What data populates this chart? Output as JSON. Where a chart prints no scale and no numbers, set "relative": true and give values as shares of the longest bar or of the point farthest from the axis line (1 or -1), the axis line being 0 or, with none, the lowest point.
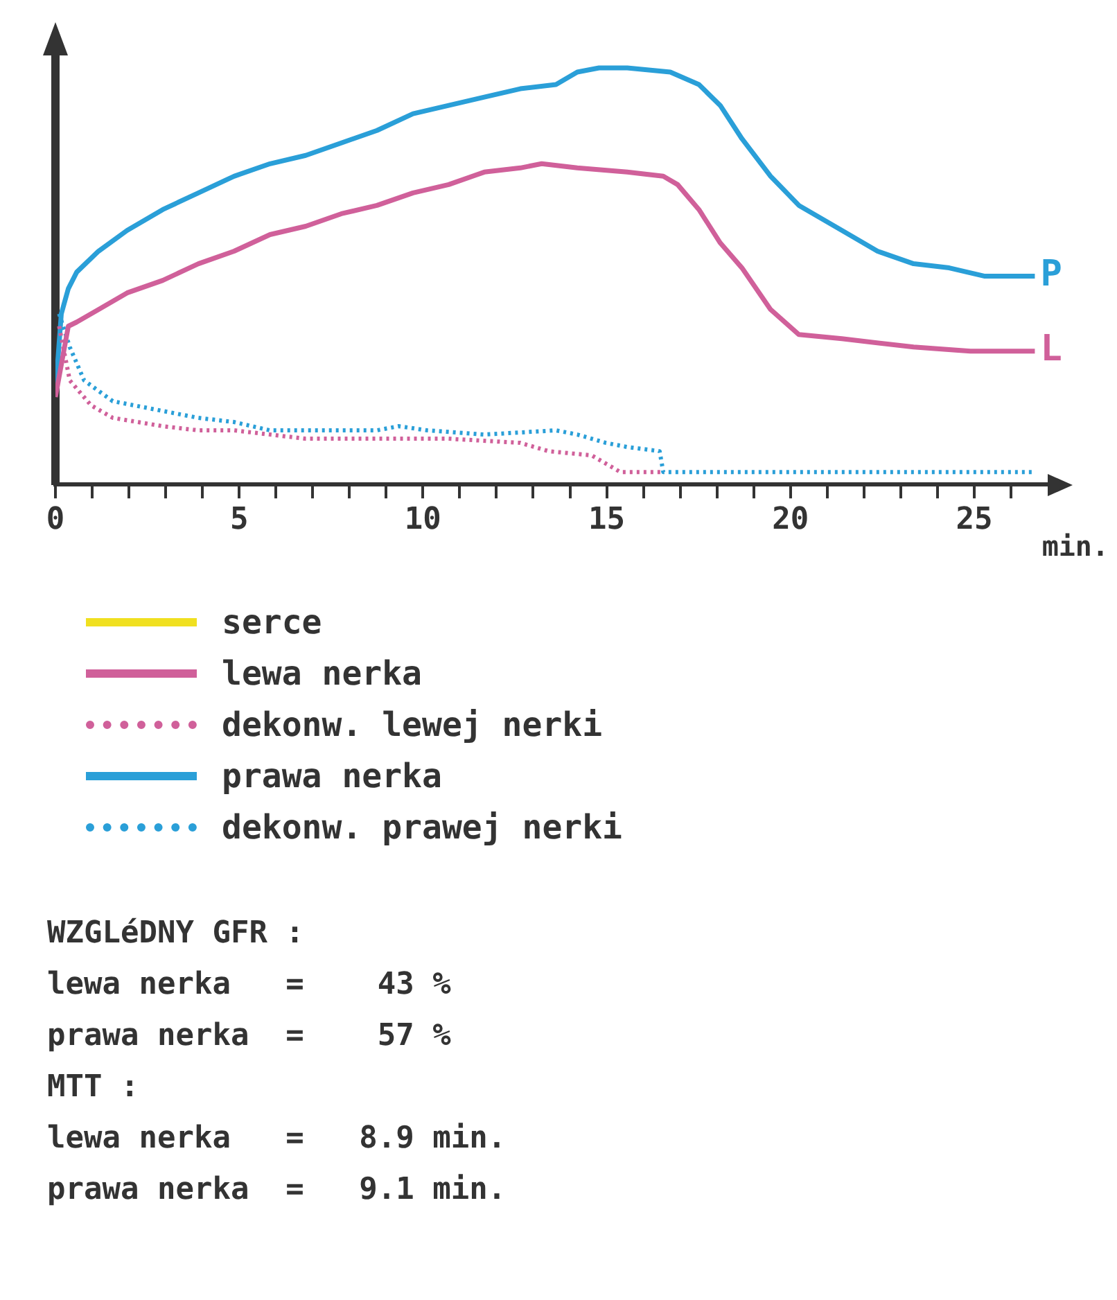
{
  "chart_data": {
    "type": "line",
    "relative": true,
    "xlabel": "min.",
    "xlim": [
      0,
      27
    ],
    "xticks": [
      0,
      {
        "value": 1,
        "label": null
      },
      {
        "value": 2,
        "label": null
      },
      {
        "value": 3,
        "label": null
      },
      {
        "value": 4,
        "label": null
      },
      5,
      {
        "value": 6,
        "label": null
      },
      {
        "value": 7,
        "label": null
      },
      {
        "value": 8,
        "label": null
      },
      {
        "value": 9,
        "label": null
      },
      10,
      {
        "value": 11,
        "label": null
      },
      {
        "value": 12,
        "label": null
      },
      {
        "value": 13,
        "label": null
      },
      {
        "value": 14,
        "label": null
      },
      15,
      {
        "value": 16,
        "label": null
      },
      {
        "value": 17,
        "label": null
      },
      {
        "value": 18,
        "label": null
      },
      {
        "value": 19,
        "label": null
      },
      20,
      {
        "value": 21,
        "label": null
      },
      {
        "value": 22,
        "label": null
      },
      {
        "value": 23,
        "label": null
      },
      {
        "value": 24,
        "label": null
      },
      25,
      {
        "value": 26,
        "label": null
      }
    ],
    "legend": "bottom",
    "grid": false,
    "marker": "none",
    "series": [
      {
        "name": "serce",
        "color": "#f0e020"
      },
      {
        "name": "lewa nerka",
        "color": "#d0609a",
        "x": [
          0,
          0.35,
          0.58,
          1.17,
          1.95,
          2.92,
          3.89,
          4.86,
          5.84,
          6.81,
          7.78,
          8.75,
          9.73,
          10.7,
          11.67,
          12.65,
          13.23,
          14.2,
          15.56,
          16.54,
          16.93,
          17.51,
          18.09,
          18.68,
          19.46,
          20.23,
          21.4,
          23.35,
          24.9,
          26.65
        ],
        "values": [
          0.21,
          0.38,
          0.39,
          0.42,
          0.46,
          0.49,
          0.53,
          0.56,
          0.6,
          0.62,
          0.65,
          0.67,
          0.7,
          0.72,
          0.75,
          0.76,
          0.77,
          0.76,
          0.75,
          0.74,
          0.72,
          0.66,
          0.58,
          0.52,
          0.42,
          0.36,
          0.35,
          0.33,
          0.32,
          0.32
        ]
      },
      {
        "name": "dekonw. lewej nerki",
        "color": "#d0609a",
        "line_style": "dotted",
        "x": [
          0.1,
          0.39,
          0.97,
          1.56,
          2.92,
          3.89,
          4.86,
          6.81,
          8.75,
          10.7,
          12.65,
          13.42,
          14.59,
          15.37,
          16.54
        ],
        "values": [
          0.38,
          0.25,
          0.19,
          0.16,
          0.14,
          0.13,
          0.13,
          0.11,
          0.11,
          0.11,
          0.1,
          0.08,
          0.07,
          0.03,
          0.03
        ]
      },
      {
        "name": "prawa nerka",
        "color": "#2a9fd8",
        "x": [
          0,
          0.16,
          0.35,
          0.58,
          1.17,
          1.95,
          2.92,
          3.89,
          4.86,
          5.84,
          6.81,
          7.78,
          8.75,
          9.73,
          10.7,
          11.67,
          12.65,
          13.62,
          14.2,
          14.79,
          15.56,
          16.73,
          17.51,
          18.09,
          18.68,
          19.46,
          20.23,
          21.4,
          22.37,
          23.35,
          24.32,
          25.29,
          26.65
        ],
        "values": [
          0.22,
          0.41,
          0.47,
          0.51,
          0.56,
          0.61,
          0.66,
          0.7,
          0.74,
          0.77,
          0.79,
          0.82,
          0.85,
          0.89,
          0.91,
          0.93,
          0.95,
          0.96,
          0.99,
          1,
          1,
          0.99,
          0.96,
          0.91,
          0.83,
          0.74,
          0.67,
          0.61,
          0.56,
          0.53,
          0.52,
          0.5,
          0.5
        ]
      },
      {
        "name": "dekonw. prawej nerki",
        "color": "#2a9fd8",
        "line_style": "dotted",
        "x": [
          0.1,
          0.39,
          0.78,
          1.56,
          2.72,
          3.89,
          4.86,
          5.84,
          6.81,
          8.75,
          9.34,
          10.12,
          11.67,
          13.62,
          14.2,
          14.98,
          15.56,
          16.44,
          16.54,
          17.51,
          26.65
        ],
        "values": [
          0.41,
          0.33,
          0.25,
          0.2,
          0.18,
          0.16,
          0.15,
          0.13,
          0.13,
          0.13,
          0.14,
          0.13,
          0.12,
          0.13,
          0.12,
          0.1,
          0.09,
          0.08,
          0.03,
          0.03,
          0.03
        ]
      }
    ],
    "annotations": [
      {
        "text": "P",
        "x": 26.65,
        "y": 0.5
      },
      {
        "text": "L",
        "x": 26.65,
        "y": 0.32
      },
      "WZGLéDNY GFR :",
      "lewa nerka   =    43 %",
      "prawa nerka  =    57 %",
      "MTT :",
      "lewa nerka   =   8.9 min.",
      "prawa nerka  =   9.1 min."
    ]
  }
}
